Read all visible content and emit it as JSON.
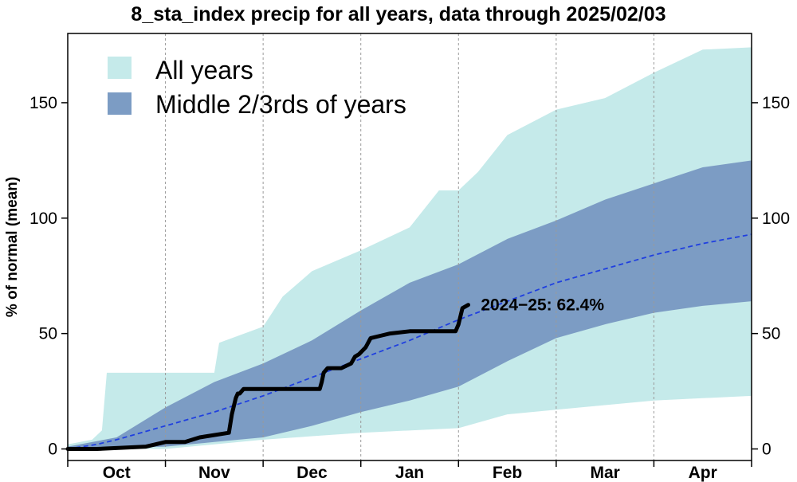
{
  "chart_data": {
    "type": "area",
    "title": "8_sta_index precip for all years, data through 2025/02/03",
    "ylabel": "% of normal (mean)",
    "xlabel": "",
    "ylim": [
      -5,
      180
    ],
    "xlim": [
      0,
      7
    ],
    "x_unit": "months since Oct 1",
    "y_ticks": [
      0,
      50,
      100,
      150
    ],
    "right_axis_ticks": [
      0,
      50,
      100,
      150
    ],
    "months": [
      "Oct",
      "Nov",
      "Dec",
      "Jan",
      "Feb",
      "Mar",
      "Apr"
    ],
    "grid": "vertical dotted lines at month boundaries",
    "legend_position": "top-left",
    "legend": [
      {
        "label": "All years",
        "color": "#c5eaea"
      },
      {
        "label": "Middle 2/3rds of years",
        "color": "#7c9cc4"
      }
    ],
    "annotation": {
      "text": "2024−25: 62.4%",
      "x": 4.09,
      "y": 62.4
    },
    "colors": {
      "all_years": "#c5eaea",
      "middle": "#7c9cc4",
      "mean_line": "#1f3fe0",
      "current_line": "#000000"
    },
    "series": [
      {
        "label": "All years (max)",
        "x": [
          0,
          0.25,
          0.35,
          0.4,
          1.0,
          1.5,
          1.55,
          2.0,
          2.2,
          2.5,
          3.0,
          3.5,
          3.8,
          4.0,
          4.2,
          4.5,
          5.0,
          5.5,
          6.0,
          6.5,
          7.0
        ],
        "y": [
          2,
          4,
          8,
          33,
          33,
          33,
          46,
          53,
          66,
          77,
          86,
          96,
          112,
          112,
          120,
          136,
          147,
          152,
          163,
          173,
          174
        ]
      },
      {
        "label": "All years (min)",
        "x": [
          0,
          1.0,
          1.5,
          2.0,
          3.0,
          4.0,
          4.5,
          5.0,
          5.5,
          6.0,
          6.5,
          7.0
        ],
        "y": [
          0,
          0,
          2,
          4,
          7,
          9,
          15,
          17,
          19,
          21,
          22,
          23
        ]
      },
      {
        "label": "Middle 2/3rds (upper)",
        "x": [
          0,
          0.5,
          1.0,
          1.5,
          2.0,
          2.5,
          3.0,
          3.5,
          4.0,
          4.5,
          5.0,
          5.5,
          6.0,
          6.5,
          7.0
        ],
        "y": [
          1,
          5,
          18,
          29,
          37,
          47,
          60,
          72,
          80,
          91,
          99,
          108,
          115,
          122,
          125
        ]
      },
      {
        "label": "Middle 2/3rds (lower)",
        "x": [
          0,
          1.0,
          1.5,
          2.0,
          2.5,
          3.0,
          3.5,
          4.0,
          4.5,
          5.0,
          5.5,
          6.0,
          6.5,
          7.0
        ],
        "y": [
          0,
          1,
          3,
          5,
          10,
          16,
          21,
          27,
          38,
          48,
          54,
          59,
          62,
          64
        ]
      },
      {
        "label": "Mean",
        "x": [
          0,
          0.3,
          0.5,
          1.0,
          1.5,
          2.0,
          2.5,
          3.0,
          3.5,
          4.0,
          4.5,
          5.0,
          5.5,
          6.0,
          6.5,
          7.0
        ],
        "y": [
          0,
          2,
          4,
          10,
          16,
          23,
          31,
          39,
          47,
          56,
          64,
          72,
          78,
          84,
          89,
          93
        ]
      },
      {
        "label": "2024−25",
        "x": [
          0,
          0.3,
          0.8,
          1.0,
          1.2,
          1.35,
          1.65,
          1.68,
          1.72,
          1.74,
          1.76,
          1.8,
          1.85,
          1.9,
          2.0,
          2.3,
          2.5,
          2.58,
          2.6,
          2.62,
          2.66,
          2.8,
          2.9,
          2.94,
          2.98,
          3.05,
          3.1,
          3.2,
          3.3,
          3.5,
          3.8,
          3.95,
          3.97,
          4.0,
          4.04,
          4.1
        ],
        "y": [
          0,
          0,
          1,
          3,
          3,
          5,
          7,
          15,
          22,
          24,
          24,
          26,
          26,
          26,
          26,
          26,
          26,
          26,
          29,
          33,
          35,
          35,
          37,
          40,
          41,
          44,
          48,
          49,
          50,
          51,
          51,
          51,
          51,
          54,
          61,
          62.4
        ]
      }
    ]
  }
}
